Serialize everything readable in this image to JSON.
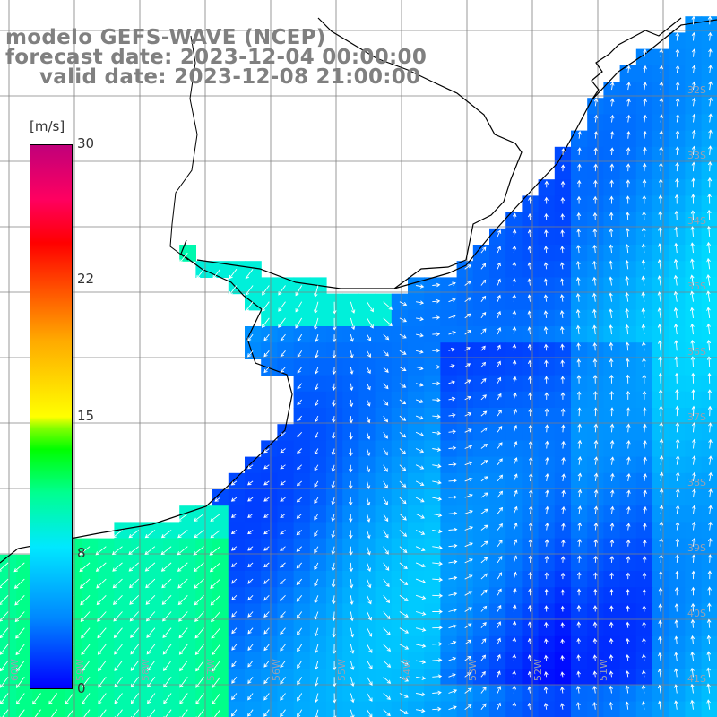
{
  "title": {
    "line1": "modelo GEFS-WAVE (NCEP)",
    "line2": "forecast date: 2023-12-04 00:00:00",
    "line3": "valid date: 2023-12-08 21:00:00"
  },
  "colorbar": {
    "unit": "[m/s]",
    "ticks": [
      "30",
      "22",
      "15",
      "8",
      "0"
    ],
    "values": [
      30,
      22,
      15,
      8,
      0
    ],
    "min": 0,
    "max": 30
  },
  "lat_labels": [
    "32S",
    "33S",
    "34S",
    "35S",
    "36S",
    "37S",
    "38S",
    "39S",
    "40S",
    "41S"
  ],
  "lon_labels": [
    "60W",
    "59W",
    "58W",
    "57W",
    "56W",
    "55W",
    "54W",
    "53W",
    "52W",
    "51W"
  ],
  "colors": {
    "land": "#ffffff",
    "coast": "#000000",
    "grid": "#808080",
    "arrows": "#ffffff",
    "title": "#808080"
  }
}
